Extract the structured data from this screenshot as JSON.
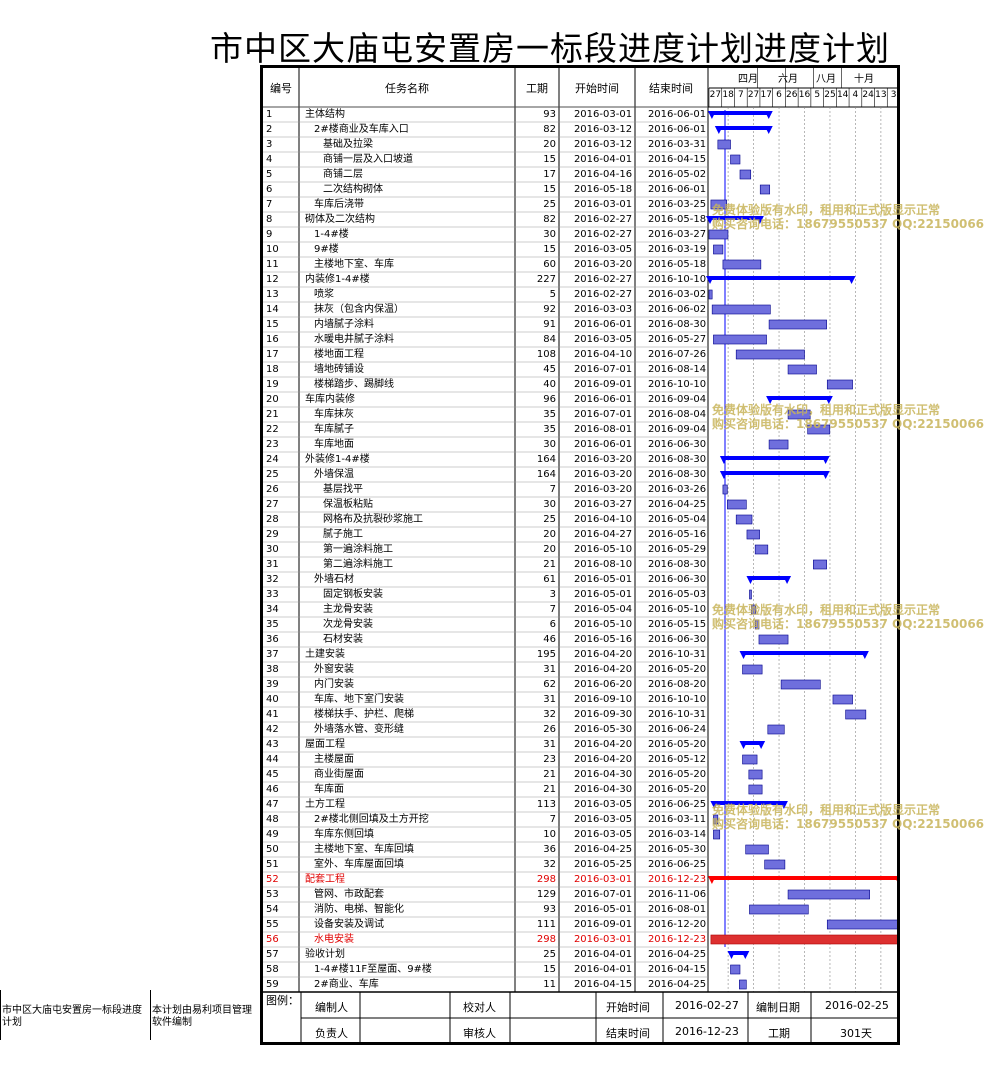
{
  "title": "市中区大庙屯安置房一标段进度计划进度计划",
  "headers": {
    "id": "编号",
    "name": "任务名称",
    "dur": "工期",
    "start": "开始时间",
    "end": "结束时间"
  },
  "months": [
    "四月",
    "六月",
    "八月",
    "十月"
  ],
  "weeks": [
    "27",
    "18",
    "7",
    "27",
    "17",
    "6",
    "26",
    "16",
    "5",
    "25",
    "14",
    "4",
    "24",
    "13",
    "3"
  ],
  "tasks": [
    {
      "id": "1",
      "name": "主体结构",
      "dur": "93",
      "start": "2016-03-01",
      "end": "2016-06-01",
      "lvl": 0,
      "type": "summary"
    },
    {
      "id": "2",
      "name": "2#楼商业及车库入口",
      "dur": "82",
      "start": "2016-03-12",
      "end": "2016-06-01",
      "lvl": 1,
      "type": "summary"
    },
    {
      "id": "3",
      "name": "基础及拉梁",
      "dur": "20",
      "start": "2016-03-12",
      "end": "2016-03-31",
      "lvl": 2,
      "type": "task"
    },
    {
      "id": "4",
      "name": "商铺一层及入口坡道",
      "dur": "15",
      "start": "2016-04-01",
      "end": "2016-04-15",
      "lvl": 2,
      "type": "task"
    },
    {
      "id": "5",
      "name": "商铺二层",
      "dur": "17",
      "start": "2016-04-16",
      "end": "2016-05-02",
      "lvl": 2,
      "type": "task"
    },
    {
      "id": "6",
      "name": "二次结构砌体",
      "dur": "15",
      "start": "2016-05-18",
      "end": "2016-06-01",
      "lvl": 2,
      "type": "task"
    },
    {
      "id": "7",
      "name": "车库后浇带",
      "dur": "25",
      "start": "2016-03-01",
      "end": "2016-03-25",
      "lvl": 1,
      "type": "task"
    },
    {
      "id": "8",
      "name": "砌体及二次结构",
      "dur": "82",
      "start": "2016-02-27",
      "end": "2016-05-18",
      "lvl": 0,
      "type": "summary"
    },
    {
      "id": "9",
      "name": "1-4#楼",
      "dur": "30",
      "start": "2016-02-27",
      "end": "2016-03-27",
      "lvl": 1,
      "type": "task"
    },
    {
      "id": "10",
      "name": "9#楼",
      "dur": "15",
      "start": "2016-03-05",
      "end": "2016-03-19",
      "lvl": 1,
      "type": "task"
    },
    {
      "id": "11",
      "name": "主楼地下室、车库",
      "dur": "60",
      "start": "2016-03-20",
      "end": "2016-05-18",
      "lvl": 1,
      "type": "task"
    },
    {
      "id": "12",
      "name": "内装修1-4#楼",
      "dur": "227",
      "start": "2016-02-27",
      "end": "2016-10-10",
      "lvl": 0,
      "type": "summary"
    },
    {
      "id": "13",
      "name": "喷浆",
      "dur": "5",
      "start": "2016-02-27",
      "end": "2016-03-02",
      "lvl": 1,
      "type": "task"
    },
    {
      "id": "14",
      "name": "抹灰（包含内保温）",
      "dur": "92",
      "start": "2016-03-03",
      "end": "2016-06-02",
      "lvl": 1,
      "type": "task"
    },
    {
      "id": "15",
      "name": "内墙腻子涂料",
      "dur": "91",
      "start": "2016-06-01",
      "end": "2016-08-30",
      "lvl": 1,
      "type": "task"
    },
    {
      "id": "16",
      "name": "水暖电井腻子涂料",
      "dur": "84",
      "start": "2016-03-05",
      "end": "2016-05-27",
      "lvl": 1,
      "type": "task"
    },
    {
      "id": "17",
      "name": "楼地面工程",
      "dur": "108",
      "start": "2016-04-10",
      "end": "2016-07-26",
      "lvl": 1,
      "type": "task"
    },
    {
      "id": "18",
      "name": "墙地砖铺设",
      "dur": "45",
      "start": "2016-07-01",
      "end": "2016-08-14",
      "lvl": 1,
      "type": "task"
    },
    {
      "id": "19",
      "name": "楼梯踏步、踢脚线",
      "dur": "40",
      "start": "2016-09-01",
      "end": "2016-10-10",
      "lvl": 1,
      "type": "task"
    },
    {
      "id": "20",
      "name": "车库内装修",
      "dur": "96",
      "start": "2016-06-01",
      "end": "2016-09-04",
      "lvl": 0,
      "type": "summary"
    },
    {
      "id": "21",
      "name": "车库抹灰",
      "dur": "35",
      "start": "2016-07-01",
      "end": "2016-08-04",
      "lvl": 1,
      "type": "task"
    },
    {
      "id": "22",
      "name": "车库腻子",
      "dur": "35",
      "start": "2016-08-01",
      "end": "2016-09-04",
      "lvl": 1,
      "type": "task"
    },
    {
      "id": "23",
      "name": "车库地面",
      "dur": "30",
      "start": "2016-06-01",
      "end": "2016-06-30",
      "lvl": 1,
      "type": "task"
    },
    {
      "id": "24",
      "name": "外装修1-4#楼",
      "dur": "164",
      "start": "2016-03-20",
      "end": "2016-08-30",
      "lvl": 0,
      "type": "summary"
    },
    {
      "id": "25",
      "name": "外墙保温",
      "dur": "164",
      "start": "2016-03-20",
      "end": "2016-08-30",
      "lvl": 1,
      "type": "summary"
    },
    {
      "id": "26",
      "name": "基层找平",
      "dur": "7",
      "start": "2016-03-20",
      "end": "2016-03-26",
      "lvl": 2,
      "type": "task"
    },
    {
      "id": "27",
      "name": "保温板粘贴",
      "dur": "30",
      "start": "2016-03-27",
      "end": "2016-04-25",
      "lvl": 2,
      "type": "task"
    },
    {
      "id": "28",
      "name": "网格布及抗裂砂浆施工",
      "dur": "25",
      "start": "2016-04-10",
      "end": "2016-05-04",
      "lvl": 2,
      "type": "task"
    },
    {
      "id": "29",
      "name": "腻子施工",
      "dur": "20",
      "start": "2016-04-27",
      "end": "2016-05-16",
      "lvl": 2,
      "type": "task"
    },
    {
      "id": "30",
      "name": "第一遍涂料施工",
      "dur": "20",
      "start": "2016-05-10",
      "end": "2016-05-29",
      "lvl": 2,
      "type": "task"
    },
    {
      "id": "31",
      "name": "第二遍涂料施工",
      "dur": "21",
      "start": "2016-08-10",
      "end": "2016-08-30",
      "lvl": 2,
      "type": "task"
    },
    {
      "id": "32",
      "name": "外墙石材",
      "dur": "61",
      "start": "2016-05-01",
      "end": "2016-06-30",
      "lvl": 1,
      "type": "summary"
    },
    {
      "id": "33",
      "name": "固定钢板安装",
      "dur": "3",
      "start": "2016-05-01",
      "end": "2016-05-03",
      "lvl": 2,
      "type": "task"
    },
    {
      "id": "34",
      "name": "主龙骨安装",
      "dur": "7",
      "start": "2016-05-04",
      "end": "2016-05-10",
      "lvl": 2,
      "type": "task"
    },
    {
      "id": "35",
      "name": "次龙骨安装",
      "dur": "6",
      "start": "2016-05-10",
      "end": "2016-05-15",
      "lvl": 2,
      "type": "task"
    },
    {
      "id": "36",
      "name": "石材安装",
      "dur": "46",
      "start": "2016-05-16",
      "end": "2016-06-30",
      "lvl": 2,
      "type": "task"
    },
    {
      "id": "37",
      "name": "土建安装",
      "dur": "195",
      "start": "2016-04-20",
      "end": "2016-10-31",
      "lvl": 0,
      "type": "summary"
    },
    {
      "id": "38",
      "name": "外窗安装",
      "dur": "31",
      "start": "2016-04-20",
      "end": "2016-05-20",
      "lvl": 1,
      "type": "task"
    },
    {
      "id": "39",
      "name": "内门安装",
      "dur": "62",
      "start": "2016-06-20",
      "end": "2016-08-20",
      "lvl": 1,
      "type": "task"
    },
    {
      "id": "40",
      "name": "车库、地下室门安装",
      "dur": "31",
      "start": "2016-09-10",
      "end": "2016-10-10",
      "lvl": 1,
      "type": "task"
    },
    {
      "id": "41",
      "name": "楼梯扶手、护栏、爬梯",
      "dur": "32",
      "start": "2016-09-30",
      "end": "2016-10-31",
      "lvl": 1,
      "type": "task"
    },
    {
      "id": "42",
      "name": "外墙落水管、变形缝",
      "dur": "26",
      "start": "2016-05-30",
      "end": "2016-06-24",
      "lvl": 1,
      "type": "task"
    },
    {
      "id": "43",
      "name": "屋面工程",
      "dur": "31",
      "start": "2016-04-20",
      "end": "2016-05-20",
      "lvl": 0,
      "type": "summary"
    },
    {
      "id": "44",
      "name": "主楼屋面",
      "dur": "23",
      "start": "2016-04-20",
      "end": "2016-05-12",
      "lvl": 1,
      "type": "task"
    },
    {
      "id": "45",
      "name": "商业街屋面",
      "dur": "21",
      "start": "2016-04-30",
      "end": "2016-05-20",
      "lvl": 1,
      "type": "task"
    },
    {
      "id": "46",
      "name": "车库面",
      "dur": "21",
      "start": "2016-04-30",
      "end": "2016-05-20",
      "lvl": 1,
      "type": "task"
    },
    {
      "id": "47",
      "name": "土方工程",
      "dur": "113",
      "start": "2016-03-05",
      "end": "2016-06-25",
      "lvl": 0,
      "type": "summary"
    },
    {
      "id": "48",
      "name": "2#楼北侧回填及土方开挖",
      "dur": "7",
      "start": "2016-03-05",
      "end": "2016-03-11",
      "lvl": 1,
      "type": "task"
    },
    {
      "id": "49",
      "name": "车库东侧回填",
      "dur": "10",
      "start": "2016-03-05",
      "end": "2016-03-14",
      "lvl": 1,
      "type": "task"
    },
    {
      "id": "50",
      "name": "主楼地下室、车库回填",
      "dur": "36",
      "start": "2016-04-25",
      "end": "2016-05-30",
      "lvl": 1,
      "type": "task"
    },
    {
      "id": "51",
      "name": "室外、车库屋面回填",
      "dur": "32",
      "start": "2016-05-25",
      "end": "2016-06-25",
      "lvl": 1,
      "type": "task"
    },
    {
      "id": "52",
      "name": "配套工程",
      "dur": "298",
      "start": "2016-03-01",
      "end": "2016-12-23",
      "lvl": 0,
      "type": "critsummary"
    },
    {
      "id": "53",
      "name": "管网、市政配套",
      "dur": "129",
      "start": "2016-07-01",
      "end": "2016-11-06",
      "lvl": 1,
      "type": "task"
    },
    {
      "id": "54",
      "name": "消防、电梯、智能化",
      "dur": "93",
      "start": "2016-05-01",
      "end": "2016-08-01",
      "lvl": 1,
      "type": "task"
    },
    {
      "id": "55",
      "name": "设备安装及调试",
      "dur": "111",
      "start": "2016-09-01",
      "end": "2016-12-20",
      "lvl": 1,
      "type": "task"
    },
    {
      "id": "56",
      "name": "水电安装",
      "dur": "298",
      "start": "2016-03-01",
      "end": "2016-12-23",
      "lvl": 1,
      "type": "crittask"
    },
    {
      "id": "57",
      "name": "验收计划",
      "dur": "25",
      "start": "2016-04-01",
      "end": "2016-04-25",
      "lvl": 0,
      "type": "summary"
    },
    {
      "id": "58",
      "name": "1-4#楼11F至屋面、9#楼",
      "dur": "15",
      "start": "2016-04-01",
      "end": "2016-04-15",
      "lvl": 1,
      "type": "task"
    },
    {
      "id": "59",
      "name": "2#商业、车库",
      "dur": "11",
      "start": "2016-04-15",
      "end": "2016-04-25",
      "lvl": 1,
      "type": "task"
    }
  ],
  "footer": {
    "legend": "图例：",
    "compiler_label": "编制人",
    "checker_label": "校对人",
    "owner_label": "负责人",
    "reviewer_label": "审核人",
    "start_label": "开始时间",
    "start_value": "2016-02-27",
    "compile_date_label": "编制日期",
    "compile_date_value": "2016-02-25",
    "end_label": "结束时间",
    "end_value": "2016-12-23",
    "dur_label": "工期",
    "dur_value": "301天"
  },
  "side": {
    "project_name": "市中区大庙屯安置房一标段进度计划",
    "note": "本计划由易利项目管理软件编制"
  },
  "watermark": {
    "line1": "免费体验版有水印，租用和正式版显示正常",
    "line2": "购买咨询电话：18679550537 QQ:22150066"
  },
  "colors": {
    "task": "#0000ff",
    "summary": "#0000ff",
    "critical": "#ff0000",
    "task_fill": "#6f6fdd"
  }
}
